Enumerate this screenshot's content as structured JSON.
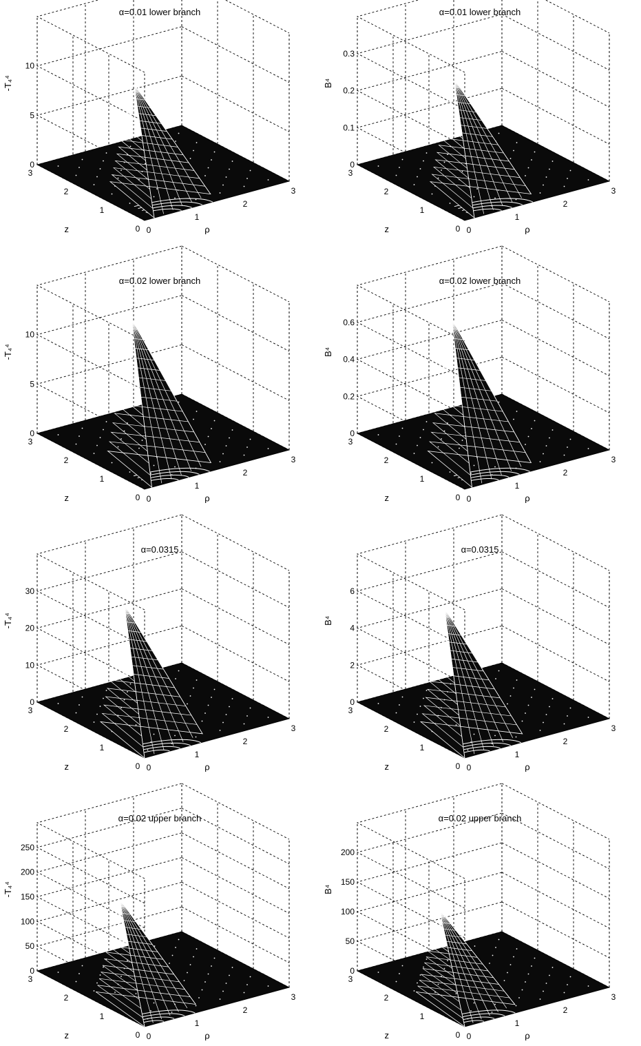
{
  "chart_data": [
    {
      "type": "surface",
      "title": "α=0.01 lower branch",
      "zlabel": "-T₄⁴",
      "xlabel": "ρ",
      "ylabel": "z",
      "x_ticks": [
        "0",
        "1",
        "2",
        "3"
      ],
      "y_ticks": [
        "0",
        "1",
        "2",
        "3"
      ],
      "z_ticks": [
        "0",
        "5",
        "10"
      ],
      "zlim": [
        0,
        15
      ],
      "peak": {
        "rho": 0.45,
        "z": 0,
        "value": 11.5
      },
      "grid": true
    },
    {
      "type": "surface",
      "title": "α=0.01 lower branch",
      "zlabel": "B⁴",
      "xlabel": "ρ",
      "ylabel": "z",
      "x_ticks": [
        "0",
        "1",
        "2",
        "3"
      ],
      "y_ticks": [
        "0",
        "1",
        "2",
        "3"
      ],
      "z_ticks": [
        "0",
        "0.1",
        "0.2",
        "0.3"
      ],
      "zlim": [
        0,
        0.4
      ],
      "peak": {
        "rho": 0.45,
        "z": 0,
        "value": 0.32
      },
      "grid": true
    },
    {
      "type": "surface",
      "title": "α=0.02 lower branch",
      "zlabel": "-T₄⁴",
      "xlabel": "ρ",
      "ylabel": "z",
      "x_ticks": [
        "0",
        "1",
        "2",
        "3"
      ],
      "y_ticks": [
        "0",
        "1",
        "2",
        "3"
      ],
      "z_ticks": [
        "0",
        "5",
        "10"
      ],
      "zlim": [
        0,
        15
      ],
      "peak": {
        "rho": 0.4,
        "z": 0,
        "value": 15
      },
      "grid": true
    },
    {
      "type": "surface",
      "title": "α=0.02 lower branch",
      "zlabel": "B⁴",
      "xlabel": "ρ",
      "ylabel": "z",
      "x_ticks": [
        "0",
        "1",
        "2",
        "3"
      ],
      "y_ticks": [
        "0",
        "1",
        "2",
        "3"
      ],
      "z_ticks": [
        "0",
        "0.2",
        "0.4",
        "0.6"
      ],
      "zlim": [
        0,
        0.8
      ],
      "peak": {
        "rho": 0.4,
        "z": 0,
        "value": 0.8
      },
      "grid": true
    },
    {
      "type": "surface",
      "title": "α=0.0315",
      "zlabel": "-T₄⁴",
      "xlabel": "ρ",
      "ylabel": "z",
      "x_ticks": [
        "0",
        "1",
        "2",
        "3"
      ],
      "y_ticks": [
        "0",
        "1",
        "2",
        "3"
      ],
      "z_ticks": [
        "0",
        "10",
        "20",
        "30"
      ],
      "zlim": [
        0,
        40
      ],
      "peak": {
        "rho": 0.25,
        "z": 0,
        "value": 36
      },
      "grid": true
    },
    {
      "type": "surface",
      "title": "α=0.0315",
      "zlabel": "B⁴",
      "xlabel": "ρ",
      "ylabel": "z",
      "x_ticks": [
        "0",
        "1",
        "2",
        "3"
      ],
      "y_ticks": [
        "0",
        "1",
        "2",
        "3"
      ],
      "z_ticks": [
        "0",
        "2",
        "4",
        "6"
      ],
      "zlim": [
        0,
        8
      ],
      "peak": {
        "rho": 0.25,
        "z": 0,
        "value": 7
      },
      "grid": true
    },
    {
      "type": "surface",
      "title": "α=0.02 upper branch",
      "zlabel": "-T₄⁴",
      "xlabel": "ρ",
      "ylabel": "z",
      "x_ticks": [
        "0",
        "1",
        "2",
        "3"
      ],
      "y_ticks": [
        "0",
        "1",
        "2",
        "3"
      ],
      "z_ticks": [
        "0",
        "50",
        "100",
        "150",
        "200",
        "250"
      ],
      "zlim": [
        0,
        300
      ],
      "peak": {
        "rho": 0.15,
        "z": 0,
        "value": 220
      },
      "grid": true
    },
    {
      "type": "surface",
      "title": "α=0.02 upper branch",
      "zlabel": "B⁴",
      "xlabel": "ρ",
      "ylabel": "z",
      "x_ticks": [
        "0",
        "1",
        "2",
        "3"
      ],
      "y_ticks": [
        "0",
        "1",
        "2",
        "3"
      ],
      "z_ticks": [
        "0",
        "50",
        "100",
        "150",
        "200"
      ],
      "zlim": [
        0,
        250
      ],
      "peak": {
        "rho": 0.15,
        "z": 0,
        "value": 165
      },
      "grid": true
    }
  ]
}
